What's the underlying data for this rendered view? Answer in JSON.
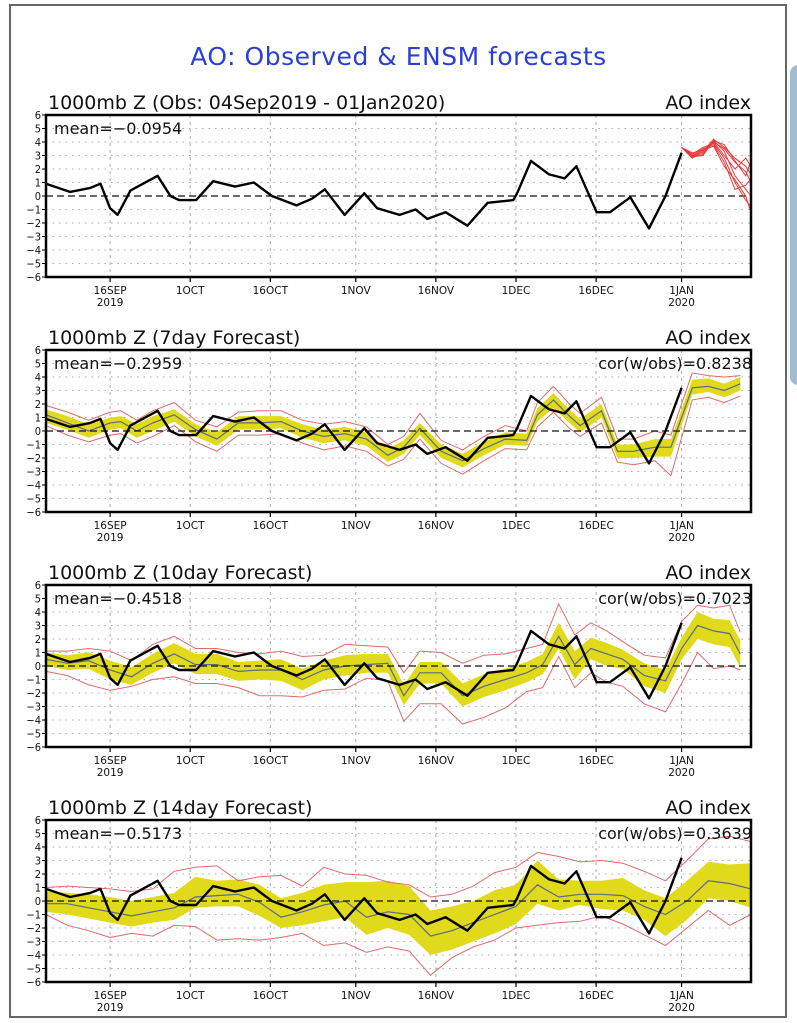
{
  "page": {
    "title": "AO: Observed & ENSM forecasts"
  },
  "colors": {
    "title": "#2a3fd6",
    "observed": "#000000",
    "ensemble_members": "#e8393b",
    "spread_band": "#e0da1a",
    "envelope": "#e06a6a",
    "ensemble_mean": "#5a6a8a",
    "grid": "#aaaaaa"
  },
  "chart_data": [
    {
      "type": "line",
      "panel": "observed",
      "title_left": "1000mb Z (Obs: 04Sep2019 - 01Jan2020)",
      "title_right": "AO index",
      "mean_label": "mean=-0.0954",
      "cor_label": "",
      "ylim": [
        -6,
        6
      ],
      "yticks": [
        6,
        5,
        4,
        3,
        2,
        1,
        0,
        -1,
        -2,
        -3,
        -4,
        -5,
        -6
      ],
      "xlim_days": [
        0,
        132
      ],
      "x_origin": "2019-09-04",
      "xticks": [
        {
          "day": 12,
          "label": "16SEP",
          "sub": "2019"
        },
        {
          "day": 27,
          "label": "1OCT",
          "sub": ""
        },
        {
          "day": 42,
          "label": "16OCT",
          "sub": ""
        },
        {
          "day": 58,
          "label": "1NOV",
          "sub": ""
        },
        {
          "day": 73,
          "label": "16NOV",
          "sub": ""
        },
        {
          "day": 88,
          "label": "1DEC",
          "sub": ""
        },
        {
          "day": 103,
          "label": "16DEC",
          "sub": ""
        },
        {
          "day": 119,
          "label": "1JAN",
          "sub": "2020"
        }
      ],
      "grid": true,
      "observed": {
        "x": [
          0,
          4.5,
          8.3,
          10.2,
          12,
          13.4,
          15.8,
          20.9,
          23.3,
          24.9,
          28.1,
          31.3,
          35.4,
          38.9,
          42.3,
          46.9,
          49.8,
          52.2,
          55.9,
          59.6,
          62,
          66.2,
          69.2,
          71.4,
          74.8,
          78.9,
          82.7,
          87.5,
          88.2,
          90.8,
          94.2,
          97.1,
          99.3,
          103.1,
          105.6,
          109.4,
          112.9,
          116,
          119
        ],
        "y": [
          0.9,
          0.3,
          0.6,
          0.9,
          -0.9,
          -1.4,
          0.4,
          1.5,
          0,
          -0.3,
          -0.3,
          1.1,
          0.7,
          1.0,
          0,
          -0.7,
          -0.2,
          0.5,
          -1.4,
          0.2,
          -0.9,
          -1.4,
          -1.0,
          -1.7,
          -1.2,
          -2.2,
          -0.5,
          -0.3,
          0.2,
          2.6,
          1.6,
          1.3,
          2.2,
          -1.2,
          -1.2,
          -0.1,
          -2.4,
          0,
          3.2
        ]
      },
      "ensemble_members": [
        {
          "x": [
            119,
            121,
            123,
            125,
            127,
            129,
            131,
            132
          ],
          "y": [
            3.6,
            2.9,
            3.4,
            4.0,
            3.5,
            2.5,
            1.8,
            1.0
          ]
        },
        {
          "x": [
            119,
            121,
            123,
            125,
            127,
            129,
            131,
            132
          ],
          "y": [
            3.6,
            3.0,
            3.2,
            4.1,
            3.3,
            1.5,
            0.5,
            0.0
          ]
        },
        {
          "x": [
            119,
            121,
            123,
            125,
            127,
            129,
            131,
            132
          ],
          "y": [
            3.6,
            3.1,
            3.6,
            3.9,
            2.8,
            1.0,
            -0.3,
            -0.8
          ]
        },
        {
          "x": [
            119,
            121,
            123,
            125,
            127,
            129,
            131,
            132
          ],
          "y": [
            3.6,
            2.8,
            3.3,
            4.2,
            3.6,
            2.8,
            2.2,
            1.6
          ]
        },
        {
          "x": [
            119,
            121,
            123,
            125,
            127,
            129,
            131,
            132
          ],
          "y": [
            3.6,
            3.0,
            3.5,
            3.8,
            2.5,
            0.5,
            0.8,
            1.3
          ]
        },
        {
          "x": [
            119,
            121,
            123,
            125,
            127,
            129,
            131,
            132
          ],
          "y": [
            3.6,
            2.9,
            3.1,
            4.0,
            3.0,
            2.0,
            2.8,
            2.2
          ]
        },
        {
          "x": [
            119,
            121,
            123,
            125,
            127,
            129,
            131,
            132
          ],
          "y": [
            3.6,
            3.2,
            3.4,
            3.7,
            2.2,
            1.2,
            0.0,
            -1.2
          ]
        },
        {
          "x": [
            119,
            121,
            123,
            125,
            127,
            129,
            131,
            132
          ],
          "y": [
            3.6,
            2.9,
            3.0,
            4.1,
            3.8,
            2.6,
            1.5,
            2.6
          ]
        }
      ]
    },
    {
      "type": "area",
      "panel": "7day",
      "title_left": "1000mb Z (7day Forecast)",
      "title_right": "AO index",
      "mean_label": "mean=-0.2959",
      "cor_label": "cor(w/obs)=0.8238",
      "ylim": [
        -6,
        6
      ],
      "grid": true,
      "forecast": {
        "x": [
          0,
          4,
          8,
          12,
          14,
          17,
          20,
          24,
          28,
          32,
          36,
          40,
          44,
          48,
          52,
          56,
          60,
          64,
          67,
          70,
          74,
          78,
          82,
          86,
          90,
          92,
          95,
          98,
          100,
          104,
          107,
          110,
          114,
          117,
          121,
          124,
          127,
          130
        ],
        "mean": [
          1.2,
          0.6,
          0.0,
          0.6,
          0.7,
          0.0,
          0.6,
          1.2,
          0.1,
          -0.6,
          0.6,
          0.6,
          0.7,
          0.0,
          -0.4,
          -0.2,
          -0.6,
          -1.8,
          -1.2,
          0.2,
          -1.5,
          -2.2,
          -1.3,
          -0.6,
          -0.7,
          1.2,
          2.3,
          1.1,
          0.4,
          1.5,
          -1.5,
          -1.5,
          -1.2,
          -1.2,
          3.2,
          3.3,
          3.0,
          3.5
        ],
        "band_lo": [
          0.6,
          0.1,
          -0.5,
          0.1,
          0.2,
          -0.5,
          0.0,
          0.7,
          -0.4,
          -1.1,
          0.1,
          0.1,
          0.2,
          -0.5,
          -0.9,
          -0.7,
          -1.1,
          -2.3,
          -1.7,
          -0.3,
          -2.0,
          -2.7,
          -1.8,
          -1.0,
          -1.1,
          0.7,
          1.7,
          0.6,
          -0.1,
          1.0,
          -2.0,
          -2.0,
          -1.9,
          -1.9,
          2.7,
          2.9,
          2.5,
          3.0
        ],
        "band_hi": [
          1.6,
          1.1,
          0.5,
          1.0,
          1.1,
          0.5,
          1.1,
          1.6,
          0.5,
          -0.1,
          1.1,
          1.1,
          1.1,
          0.5,
          0.1,
          0.3,
          -0.1,
          -1.3,
          -0.7,
          0.6,
          -1.0,
          -1.7,
          -0.8,
          -0.1,
          -0.2,
          1.7,
          2.8,
          1.6,
          0.9,
          2.0,
          -1.0,
          -1.0,
          -0.6,
          -0.6,
          3.8,
          3.9,
          3.5,
          4.0
        ],
        "env_lo": [
          0.4,
          -0.3,
          -0.8,
          -0.3,
          -0.2,
          -0.9,
          -0.4,
          0.4,
          -0.8,
          -1.5,
          -0.3,
          -0.3,
          -0.2,
          -0.9,
          -1.4,
          -1.1,
          -1.5,
          -2.6,
          -2.1,
          -0.6,
          -2.4,
          -3.2,
          -2.2,
          -1.3,
          -1.4,
          0.3,
          1.4,
          0.2,
          -0.4,
          0.6,
          -2.3,
          -2.5,
          -2.2,
          -3.3,
          2.3,
          2.5,
          2.1,
          2.6
        ],
        "env_hi": [
          1.9,
          1.4,
          0.8,
          1.4,
          1.5,
          0.8,
          1.5,
          2.1,
          0.8,
          0.3,
          1.4,
          1.5,
          1.5,
          0.8,
          0.5,
          0.7,
          0.3,
          -1.0,
          -0.4,
          1.3,
          -0.7,
          -1.4,
          -0.4,
          0.4,
          0.0,
          2.1,
          3.3,
          2.0,
          1.3,
          2.5,
          -0.6,
          -0.6,
          0.0,
          -0.3,
          4.3,
          4.1,
          4.0,
          4.1
        ]
      }
    },
    {
      "type": "area",
      "panel": "10day",
      "title_left": "1000mb Z (10day Forecast)",
      "title_right": "AO index",
      "mean_label": "mean=-0.4518",
      "cor_label": "cor(w/obs)=0.7023",
      "ylim": [
        -6,
        6
      ],
      "grid": true,
      "forecast": {
        "x": [
          0,
          4,
          8,
          12,
          16,
          20,
          24,
          28,
          32,
          36,
          40,
          44,
          48,
          52,
          56,
          60,
          64,
          67,
          70,
          74,
          78,
          82,
          86,
          90,
          93,
          96,
          99,
          102,
          105,
          108,
          112,
          116,
          119,
          122,
          125,
          128,
          130
        ],
        "mean": [
          0.5,
          0.2,
          0.4,
          -0.3,
          -0.8,
          0.2,
          0.9,
          0.1,
          0.1,
          -0.4,
          -0.3,
          -0.3,
          -1.0,
          -0.3,
          0.0,
          0.1,
          0.2,
          -2.2,
          -0.5,
          -0.5,
          -2.2,
          -1.5,
          -1.0,
          -0.5,
          0.1,
          2.2,
          0.1,
          1.3,
          0.9,
          0.5,
          -0.7,
          -1.1,
          1.3,
          3.0,
          2.6,
          2.4,
          0.9
        ],
        "band_lo": [
          0.0,
          -0.3,
          -0.2,
          -1.0,
          -1.4,
          -0.5,
          0.2,
          -0.6,
          -0.6,
          -1.1,
          -1.0,
          -1.1,
          -1.8,
          -1.0,
          -0.7,
          -0.5,
          -0.5,
          -2.9,
          -1.3,
          -1.3,
          -3.0,
          -2.3,
          -1.8,
          -1.2,
          -0.6,
          1.3,
          -1.0,
          0.5,
          0.0,
          -0.2,
          -1.5,
          -2.0,
          0.5,
          2.0,
          1.6,
          1.4,
          -0.1
        ],
        "band_hi": [
          1.0,
          0.8,
          1.0,
          0.4,
          -0.1,
          0.9,
          1.7,
          0.9,
          0.9,
          0.3,
          0.4,
          0.5,
          -0.2,
          0.4,
          0.8,
          0.9,
          0.9,
          -1.4,
          0.3,
          0.3,
          -1.3,
          -0.6,
          -0.2,
          0.3,
          0.9,
          3.2,
          1.1,
          2.1,
          1.7,
          1.2,
          0.2,
          -0.3,
          2.1,
          4.0,
          3.5,
          3.4,
          1.9
        ],
        "env_lo": [
          -0.4,
          -0.7,
          -1.4,
          -1.8,
          -1.5,
          -1.0,
          -0.8,
          -1.3,
          -1.3,
          -1.6,
          -2.2,
          -2.2,
          -2.3,
          -1.8,
          -1.7,
          -0.9,
          -1.1,
          -4.1,
          -2.8,
          -2.8,
          -4.3,
          -3.8,
          -3.1,
          -1.9,
          -1.6,
          0.7,
          -1.6,
          -0.5,
          -1.2,
          -1.5,
          -2.8,
          -3.4,
          -1.3,
          1.0,
          -0.2,
          0.0,
          -0.3
        ],
        "env_hi": [
          1.1,
          1.1,
          1.3,
          1.1,
          0.4,
          1.6,
          2.2,
          1.3,
          1.3,
          1.0,
          0.9,
          1.1,
          0.7,
          0.8,
          1.6,
          1.5,
          1.4,
          -0.5,
          1.1,
          1.0,
          0.2,
          0.8,
          0.9,
          1.3,
          1.6,
          4.6,
          2.3,
          3.2,
          2.6,
          1.8,
          0.8,
          0.6,
          3.3,
          4.5,
          4.3,
          4.5,
          2.5
        ]
      }
    },
    {
      "type": "area",
      "panel": "14day",
      "title_left": "1000mb Z (14day Forecast)",
      "title_right": "AO index",
      "mean_label": "mean=-0.5173",
      "cor_label": "cor(w/obs)=0.3639",
      "ylim": [
        -6,
        6
      ],
      "grid": true,
      "forecast": {
        "x": [
          0,
          4,
          8,
          12,
          16,
          20,
          24,
          28,
          32,
          36,
          40,
          44,
          48,
          52,
          56,
          60,
          64,
          68,
          72,
          76,
          80,
          84,
          88,
          92,
          96,
          100,
          104,
          108,
          112,
          116,
          120,
          124,
          128,
          132
        ],
        "mean": [
          -0.2,
          -0.2,
          -0.5,
          -0.8,
          -1.1,
          -0.8,
          -0.5,
          0.3,
          0.4,
          0.5,
          -0.1,
          -1.2,
          -0.8,
          -0.3,
          0.0,
          -1.2,
          -0.8,
          -1.0,
          -2.6,
          -2.2,
          -1.6,
          -1.0,
          -0.4,
          1.2,
          0.3,
          0.5,
          0.5,
          0.4,
          -0.4,
          -1.0,
          0.0,
          1.5,
          1.3,
          0.9
        ],
        "band_lo": [
          -0.8,
          -1.0,
          -1.3,
          -1.6,
          -1.9,
          -1.6,
          -1.4,
          -0.5,
          -0.4,
          -0.4,
          -1.1,
          -2.0,
          -1.8,
          -1.5,
          -1.2,
          -2.5,
          -2.0,
          -2.5,
          -4.0,
          -3.6,
          -3.0,
          -2.4,
          -1.7,
          -0.2,
          -0.7,
          -0.3,
          -0.6,
          -0.7,
          -1.4,
          -2.6,
          -1.4,
          0.2,
          0.0,
          -0.5
        ],
        "band_hi": [
          0.7,
          0.6,
          0.5,
          0.3,
          0.0,
          0.3,
          0.6,
          1.8,
          1.5,
          1.6,
          1.2,
          0.2,
          0.6,
          1.2,
          1.4,
          1.4,
          1.5,
          1.1,
          -0.7,
          -0.4,
          0.0,
          0.8,
          1.2,
          3.0,
          1.6,
          1.5,
          1.5,
          1.7,
          0.8,
          0.2,
          1.5,
          2.9,
          2.7,
          2.8
        ],
        "env_lo": [
          -1.0,
          -1.8,
          -2.2,
          -2.7,
          -2.4,
          -2.6,
          -1.8,
          -1.9,
          -2.9,
          -2.8,
          -2.9,
          -2.7,
          -2.4,
          -3.3,
          -3.1,
          -3.8,
          -3.4,
          -3.7,
          -5.5,
          -4.2,
          -3.4,
          -2.9,
          -2.0,
          -1.8,
          -1.6,
          -1.5,
          -1.1,
          -1.7,
          -2.5,
          -3.3,
          -2.0,
          -0.7,
          -1.8,
          -1.0
        ],
        "env_hi": [
          1.0,
          1.1,
          1.0,
          0.9,
          0.7,
          0.9,
          2.2,
          2.5,
          2.6,
          1.5,
          1.8,
          1.9,
          1.1,
          2.5,
          2.0,
          1.9,
          1.4,
          1.2,
          0.3,
          0.5,
          1.1,
          2.1,
          2.5,
          3.6,
          3.3,
          2.9,
          3.0,
          2.8,
          2.2,
          1.5,
          3.0,
          4.6,
          4.8,
          4.4
        ]
      }
    }
  ]
}
